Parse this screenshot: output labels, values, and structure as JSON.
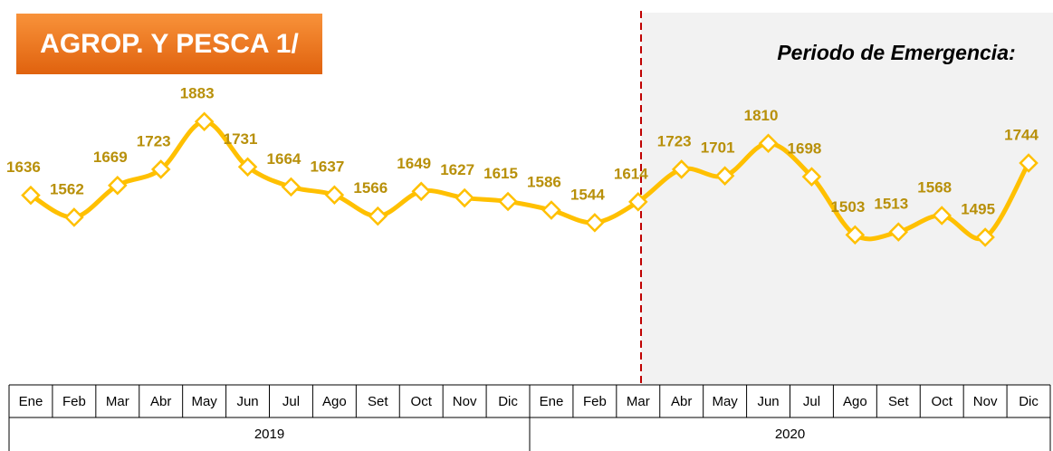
{
  "chart_data": {
    "type": "line",
    "title": "AGROP. Y PESCA 1/",
    "annotation": "Periodo de Emergencia:",
    "categories": [
      "Ene",
      "Feb",
      "Mar",
      "Abr",
      "May",
      "Jun",
      "Jul",
      "Ago",
      "Set",
      "Oct",
      "Nov",
      "Dic",
      "Ene",
      "Feb",
      "Mar",
      "Abr",
      "May",
      "Jun",
      "Jul",
      "Ago",
      "Set",
      "Oct",
      "Nov",
      "Dic"
    ],
    "category_groups": [
      "2019",
      "2020"
    ],
    "values": [
      1636,
      1562,
      1669,
      1723,
      1883,
      1731,
      1664,
      1637,
      1566,
      1649,
      1627,
      1615,
      1586,
      1544,
      1614,
      1723,
      1701,
      1810,
      1698,
      1503,
      1513,
      1568,
      1495,
      1744
    ],
    "color": "#FFC000",
    "label_color": "#B8900A",
    "ylim": [
      1000,
      2230
    ]
  }
}
